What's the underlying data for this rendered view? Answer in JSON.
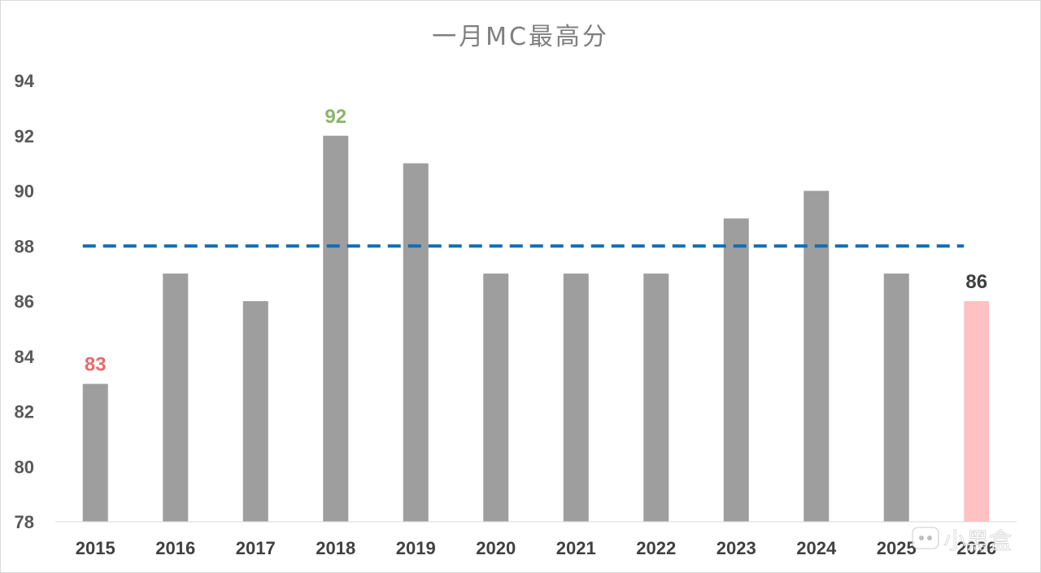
{
  "chart_data": {
    "type": "bar",
    "title": "一月MC最高分",
    "categories": [
      "2015",
      "2016",
      "2017",
      "2018",
      "2019",
      "2020",
      "2021",
      "2022",
      "2023",
      "2024",
      "2025",
      "2026"
    ],
    "values": [
      83,
      87,
      86,
      92,
      91,
      87,
      87,
      87,
      89,
      90,
      87,
      86
    ],
    "ylim": [
      78,
      94
    ],
    "yticks": [
      78,
      80,
      82,
      84,
      86,
      88,
      90,
      92,
      94
    ],
    "grid": false,
    "bar_color": "#9e9e9e",
    "highlight": {
      "index": 11,
      "color": "#ffc1c1"
    },
    "reference_line": {
      "value": 88,
      "style": "dashed",
      "color": "#0f6fb8"
    },
    "data_labels": [
      {
        "index": 0,
        "text": "83",
        "color": "#e46c6c"
      },
      {
        "index": 3,
        "text": "92",
        "color": "#8ab56a"
      },
      {
        "index": 11,
        "text": "86",
        "color": "#404040"
      }
    ]
  },
  "watermark": {
    "text": "小黑盒",
    "icon": "heybox-logo-icon"
  }
}
